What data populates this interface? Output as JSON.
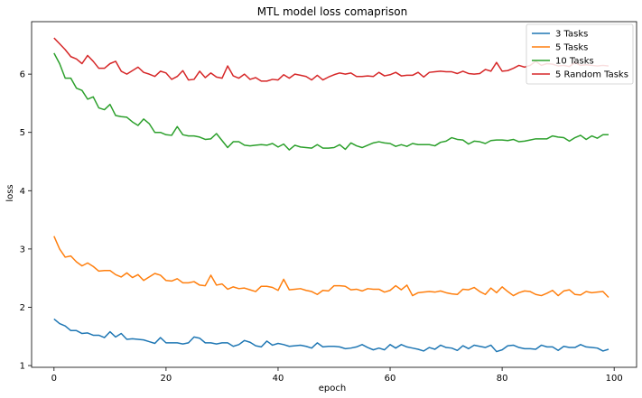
{
  "chart_data": {
    "type": "line",
    "title": "MTL model loss comaprison",
    "xlabel": "epoch",
    "ylabel": "loss",
    "xlim": [
      -4,
      104
    ],
    "ylim": [
      0.97,
      6.9
    ],
    "xticks": [
      0,
      20,
      40,
      60,
      80,
      100
    ],
    "yticks": [
      1,
      2,
      3,
      4,
      5,
      6
    ],
    "grid": false,
    "legend_position": "top-right",
    "series": [
      {
        "name": "3 Tasks",
        "color": "#1f77b4",
        "values": [
          1.8,
          1.72,
          1.68,
          1.6,
          1.6,
          1.55,
          1.56,
          1.52,
          1.52,
          1.48,
          1.58,
          1.49,
          1.55,
          1.45,
          1.46,
          1.45,
          1.44,
          1.41,
          1.38,
          1.48,
          1.39,
          1.39,
          1.39,
          1.37,
          1.39,
          1.49,
          1.47,
          1.39,
          1.39,
          1.37,
          1.39,
          1.39,
          1.33,
          1.36,
          1.43,
          1.4,
          1.34,
          1.32,
          1.42,
          1.35,
          1.38,
          1.36,
          1.33,
          1.34,
          1.35,
          1.33,
          1.3,
          1.39,
          1.32,
          1.33,
          1.33,
          1.32,
          1.29,
          1.3,
          1.32,
          1.36,
          1.31,
          1.27,
          1.3,
          1.27,
          1.36,
          1.3,
          1.36,
          1.32,
          1.3,
          1.28,
          1.25,
          1.31,
          1.28,
          1.35,
          1.31,
          1.3,
          1.26,
          1.34,
          1.29,
          1.35,
          1.33,
          1.31,
          1.35,
          1.24,
          1.27,
          1.34,
          1.35,
          1.31,
          1.29,
          1.29,
          1.28,
          1.35,
          1.32,
          1.32,
          1.26,
          1.33,
          1.31,
          1.31,
          1.36,
          1.32,
          1.31,
          1.3,
          1.25,
          1.28
        ]
      },
      {
        "name": "5 Tasks",
        "color": "#ff7f0e",
        "values": [
          3.22,
          3.0,
          2.86,
          2.88,
          2.78,
          2.71,
          2.76,
          2.7,
          2.62,
          2.63,
          2.63,
          2.56,
          2.52,
          2.59,
          2.51,
          2.56,
          2.46,
          2.52,
          2.58,
          2.55,
          2.46,
          2.45,
          2.49,
          2.42,
          2.42,
          2.44,
          2.38,
          2.37,
          2.55,
          2.38,
          2.4,
          2.31,
          2.35,
          2.32,
          2.33,
          2.3,
          2.27,
          2.36,
          2.36,
          2.34,
          2.29,
          2.48,
          2.3,
          2.31,
          2.32,
          2.29,
          2.27,
          2.22,
          2.29,
          2.28,
          2.37,
          2.37,
          2.36,
          2.3,
          2.31,
          2.28,
          2.32,
          2.31,
          2.31,
          2.26,
          2.29,
          2.37,
          2.3,
          2.38,
          2.2,
          2.25,
          2.26,
          2.27,
          2.26,
          2.28,
          2.25,
          2.23,
          2.22,
          2.31,
          2.3,
          2.34,
          2.27,
          2.22,
          2.33,
          2.25,
          2.35,
          2.27,
          2.2,
          2.25,
          2.28,
          2.27,
          2.22,
          2.2,
          2.24,
          2.29,
          2.2,
          2.28,
          2.3,
          2.22,
          2.21,
          2.27,
          2.25,
          2.26,
          2.27,
          2.17
        ]
      },
      {
        "name": "10 Tasks",
        "color": "#2ca02c",
        "values": [
          6.36,
          6.18,
          5.93,
          5.93,
          5.76,
          5.72,
          5.57,
          5.61,
          5.42,
          5.39,
          5.48,
          5.29,
          5.27,
          5.26,
          5.18,
          5.12,
          5.23,
          5.15,
          5.0,
          5.0,
          4.96,
          4.95,
          5.1,
          4.96,
          4.94,
          4.94,
          4.92,
          4.88,
          4.89,
          4.98,
          4.86,
          4.74,
          4.84,
          4.84,
          4.78,
          4.77,
          4.78,
          4.79,
          4.78,
          4.81,
          4.75,
          4.8,
          4.7,
          4.78,
          4.75,
          4.74,
          4.73,
          4.79,
          4.73,
          4.73,
          4.74,
          4.79,
          4.71,
          4.82,
          4.77,
          4.74,
          4.78,
          4.82,
          4.84,
          4.82,
          4.81,
          4.76,
          4.79,
          4.76,
          4.81,
          4.79,
          4.79,
          4.79,
          4.77,
          4.83,
          4.85,
          4.91,
          4.88,
          4.87,
          4.8,
          4.85,
          4.84,
          4.81,
          4.86,
          4.87,
          4.87,
          4.86,
          4.88,
          4.84,
          4.85,
          4.87,
          4.89,
          4.89,
          4.89,
          4.94,
          4.92,
          4.91,
          4.85,
          4.91,
          4.95,
          4.88,
          4.94,
          4.9,
          4.96,
          4.96
        ]
      },
      {
        "name": "5 Random Tasks",
        "color": "#d62728",
        "values": [
          6.62,
          6.52,
          6.42,
          6.3,
          6.26,
          6.18,
          6.32,
          6.22,
          6.1,
          6.1,
          6.18,
          6.22,
          6.05,
          6.0,
          6.06,
          6.12,
          6.03,
          6.0,
          5.96,
          6.05,
          6.02,
          5.91,
          5.96,
          6.06,
          5.9,
          5.91,
          6.05,
          5.94,
          6.02,
          5.95,
          5.93,
          6.14,
          5.97,
          5.93,
          6.0,
          5.91,
          5.94,
          5.88,
          5.88,
          5.91,
          5.9,
          5.99,
          5.93,
          6.0,
          5.98,
          5.96,
          5.9,
          5.98,
          5.9,
          5.95,
          5.99,
          6.02,
          6.0,
          6.02,
          5.96,
          5.96,
          5.97,
          5.96,
          6.03,
          5.97,
          5.99,
          6.03,
          5.97,
          5.98,
          5.98,
          6.03,
          5.95,
          6.03,
          6.04,
          6.05,
          6.04,
          6.04,
          6.01,
          6.05,
          6.01,
          6.0,
          6.01,
          6.08,
          6.05,
          6.2,
          6.05,
          6.06,
          6.1,
          6.15,
          6.12,
          6.15,
          6.22,
          6.15,
          6.18,
          6.17,
          6.14,
          6.15,
          6.13,
          6.2,
          6.15,
          6.16,
          6.15,
          6.14,
          6.15,
          6.14
        ]
      }
    ]
  }
}
